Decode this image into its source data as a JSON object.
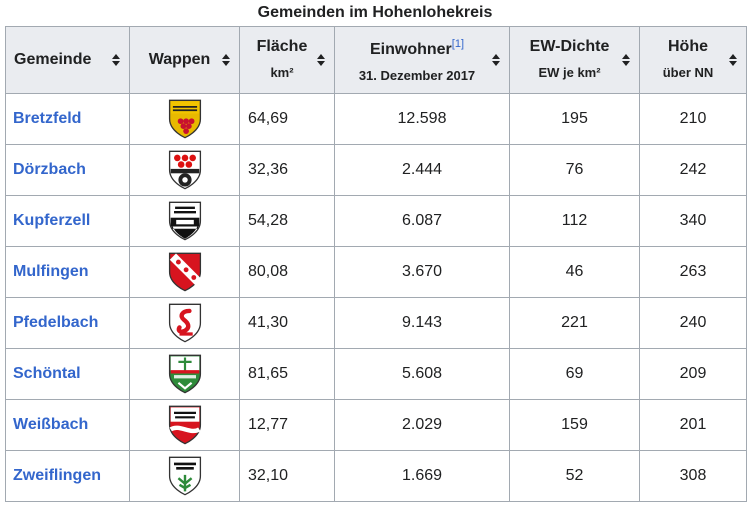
{
  "caption": "Gemeinden im Hohenlohekreis",
  "headers": {
    "gemeinde": "Gemeinde",
    "wappen": "Wappen",
    "flaeche": "Fläche",
    "flaeche_unit": "km²",
    "einwohner": "Einwohner",
    "einwohner_ref": "[1]",
    "einwohner_date": "31. Dezember 2017",
    "dichte": "EW-Dichte",
    "dichte_unit": "EW je km²",
    "hoehe": "Höhe",
    "hoehe_unit": "über NN"
  },
  "rows": [
    {
      "name": "Bretzfeld",
      "flaeche": "64,69",
      "einwohner": "12.598",
      "dichte": "195",
      "hoehe": "210",
      "crest": "bretzfeld-crest"
    },
    {
      "name": "Dörzbach",
      "flaeche": "32,36",
      "einwohner": "2.444",
      "dichte": "76",
      "hoehe": "242",
      "crest": "doerzbach-crest"
    },
    {
      "name": "Kupferzell",
      "flaeche": "54,28",
      "einwohner": "6.087",
      "dichte": "112",
      "hoehe": "340",
      "crest": "kupferzell-crest"
    },
    {
      "name": "Mulfingen",
      "flaeche": "80,08",
      "einwohner": "3.670",
      "dichte": "46",
      "hoehe": "263",
      "crest": "mulfingen-crest"
    },
    {
      "name": "Pfedelbach",
      "flaeche": "41,30",
      "einwohner": "9.143",
      "dichte": "221",
      "hoehe": "240",
      "crest": "pfedelbach-crest"
    },
    {
      "name": "Schöntal",
      "flaeche": "81,65",
      "einwohner": "5.608",
      "dichte": "69",
      "hoehe": "209",
      "crest": "schoental-crest"
    },
    {
      "name": "Weißbach",
      "flaeche": "12,77",
      "einwohner": "2.029",
      "dichte": "159",
      "hoehe": "201",
      "crest": "weissbach-crest"
    },
    {
      "name": "Zweiflingen",
      "flaeche": "32,10",
      "einwohner": "1.669",
      "dichte": "52",
      "hoehe": "308",
      "crest": "zweiflingen-crest"
    }
  ],
  "colors": {
    "link": "#3366cc",
    "header_bg": "#eaecf0",
    "border": "#a2a9b1"
  }
}
